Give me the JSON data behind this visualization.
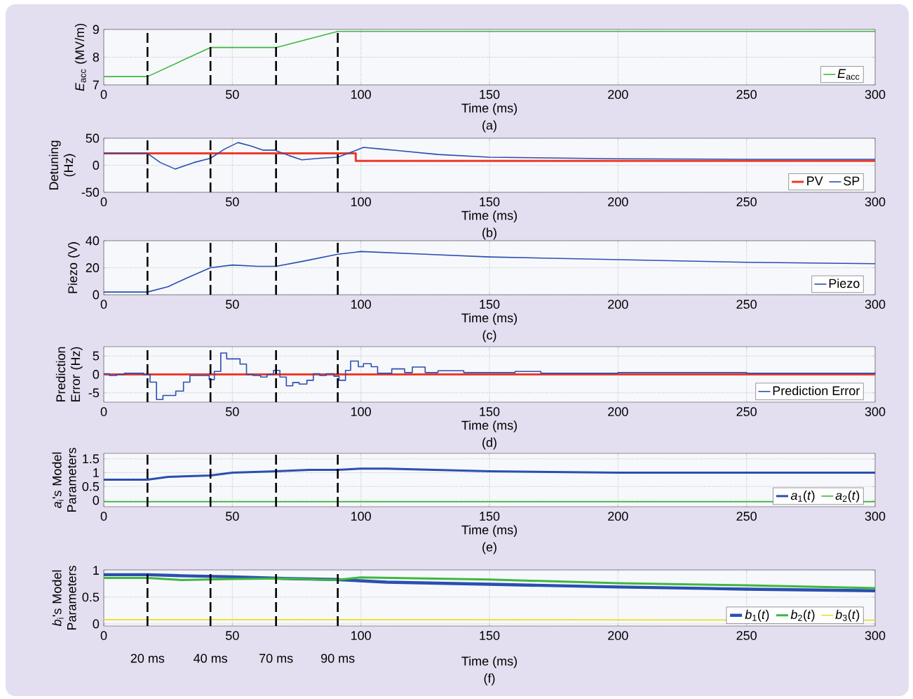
{
  "chart_data": [
    {
      "type": "line",
      "subtitle": "(a)",
      "xlabel": "Time (ms)",
      "ylabel": "*E*$_{acc}$ (MV/m)",
      "xlim": [
        0,
        300
      ],
      "xticks": [
        0,
        50,
        100,
        150,
        200,
        250,
        300
      ],
      "ylim": [
        7,
        9
      ],
      "yticks": [
        7,
        8,
        9
      ],
      "grid": true,
      "legend": "bottom right",
      "series": [
        {
          "name": "*E*$_{acc}$",
          "color": "#3db83d",
          "x": [
            0,
            17,
            41.5,
            67,
            91,
            300
          ],
          "values": [
            7.3,
            7.3,
            8.35,
            8.35,
            8.93,
            8.93
          ]
        }
      ],
      "ref_lines": [
        {
          "axis": "x",
          "value": 17
        },
        {
          "axis": "x",
          "value": 41.5
        },
        {
          "axis": "x",
          "value": 67
        },
        {
          "axis": "x",
          "value": 91
        }
      ]
    },
    {
      "type": "line",
      "subtitle": "(b)",
      "xlabel": "Time (ms)",
      "ylabel": "Detuning (Hz)",
      "xlim": [
        0,
        300
      ],
      "xticks": [
        0,
        50,
        100,
        150,
        200,
        250,
        300
      ],
      "ylim": [
        -50,
        50
      ],
      "yticks": [
        -50,
        0,
        50
      ],
      "grid": true,
      "legend": "bottom right",
      "series": [
        {
          "name": "PV",
          "color": "#ee3a2c",
          "x": [
            0,
            98,
            98,
            300
          ],
          "values": [
            22,
            22,
            8,
            8
          ]
        },
        {
          "name": "SP",
          "color": "#2a4fb0",
          "x": [
            0,
            17,
            22,
            27.8,
            35,
            41.5,
            47,
            52.2,
            57,
            62,
            66.5,
            72,
            77,
            84,
            91,
            95,
            101,
            108,
            115,
            130,
            150,
            200,
            250,
            300
          ],
          "values": [
            22,
            22,
            5,
            -7,
            5,
            13,
            30,
            42,
            36,
            28,
            28,
            18,
            10,
            13,
            15,
            22,
            33,
            30,
            27,
            20,
            15,
            12,
            11,
            11
          ]
        }
      ],
      "ref_lines": [
        {
          "axis": "x",
          "value": 17
        },
        {
          "axis": "x",
          "value": 41.5
        },
        {
          "axis": "x",
          "value": 67
        },
        {
          "axis": "x",
          "value": 91
        }
      ]
    },
    {
      "type": "line",
      "subtitle": "(c)",
      "xlabel": "Time (ms)",
      "ylabel": "Piezo (V)",
      "xlim": [
        0,
        300
      ],
      "xticks": [
        0,
        50,
        100,
        150,
        200,
        250,
        300
      ],
      "ylim": [
        0,
        40
      ],
      "yticks": [
        0,
        20,
        40
      ],
      "grid": true,
      "legend": "bottom right",
      "series": [
        {
          "name": "Piezo",
          "color": "#2a4fb0",
          "x": [
            0,
            17,
            25,
            33,
            41.5,
            50,
            60,
            67,
            78,
            91,
            100,
            125,
            150,
            200,
            250,
            300
          ],
          "values": [
            2,
            2,
            6,
            13,
            20,
            22,
            21,
            21,
            25,
            30,
            32,
            30,
            28,
            26,
            24,
            23
          ]
        }
      ],
      "ref_lines": [
        {
          "axis": "x",
          "value": 17
        },
        {
          "axis": "x",
          "value": 41.5
        },
        {
          "axis": "x",
          "value": 67
        },
        {
          "axis": "x",
          "value": 91
        }
      ]
    },
    {
      "type": "line",
      "subtitle": "(d)",
      "xlabel": "Time (ms)",
      "ylabel": "Prediction Error (Hz)",
      "xlim": [
        0,
        300
      ],
      "xticks": [
        0,
        50,
        100,
        150,
        200,
        250,
        300
      ],
      "ylim": [
        -7.5,
        7.5
      ],
      "yticks": [
        -5,
        0,
        5
      ],
      "grid": true,
      "legend": "bottom right",
      "series": [
        {
          "color": "#ee3a2c",
          "x": [
            0,
            300
          ],
          "values": [
            0,
            0
          ]
        },
        {
          "name": "Prediction Error",
          "type": "step",
          "color": "#2a4fb0",
          "x": [
            0,
            2.2,
            5,
            8,
            15.5,
            18,
            20.5,
            23,
            28,
            31,
            33.5,
            41,
            43,
            45.5,
            47.8,
            53,
            55.5,
            58,
            61,
            63.5,
            66,
            68.5,
            71,
            73.5,
            76,
            79,
            81.5,
            84,
            86.5,
            89.5,
            91.5,
            94,
            96,
            99,
            101,
            104,
            106.5,
            112,
            117,
            120,
            125,
            130,
            140,
            160,
            170,
            200,
            250,
            300
          ],
          "values": [
            0.2,
            -0.3,
            0,
            0.3,
            -0.1,
            -2.1,
            -6.8,
            -5.7,
            -4.5,
            -2.1,
            -0.3,
            -1.4,
            0.8,
            5.8,
            4.2,
            2.8,
            0,
            -0.3,
            -0.7,
            0,
            1.1,
            -0.7,
            -3.1,
            -2.2,
            -2.6,
            -1.6,
            0.2,
            -0.3,
            0.2,
            -0.5,
            -1.6,
            1.1,
            3.6,
            2.1,
            2.9,
            2.1,
            0.3,
            1.5,
            0.5,
            2,
            0.5,
            1,
            0.5,
            0.8,
            0.3,
            0.5,
            0.3,
            0.5
          ]
        }
      ],
      "ref_lines": [
        {
          "axis": "x",
          "value": 17
        },
        {
          "axis": "x",
          "value": 41.5
        },
        {
          "axis": "x",
          "value": 67
        },
        {
          "axis": "x",
          "value": 91
        }
      ]
    },
    {
      "type": "line",
      "subtitle": "(e)",
      "xlabel": "Time (ms)",
      "ylabel": "*a*$_{i}$'s Model Parameters",
      "xlim": [
        0,
        300
      ],
      "xticks": [
        0,
        50,
        100,
        150,
        200,
        250,
        300
      ],
      "ylim": [
        -0.23,
        1.7
      ],
      "yticks": [
        0,
        0.5,
        1,
        1.5
      ],
      "grid": true,
      "legend": "bottom right",
      "series": [
        {
          "name": "*a*$_{1}$(*t*)",
          "color": "#2a4fb0",
          "x": [
            0,
            17,
            25,
            41.5,
            50,
            67,
            80,
            91,
            100,
            110,
            150,
            200,
            300
          ],
          "values": [
            0.75,
            0.75,
            0.85,
            0.9,
            1.0,
            1.05,
            1.1,
            1.1,
            1.15,
            1.15,
            1.05,
            1.0,
            1.0
          ]
        },
        {
          "name": "*a*$_{2}$(*t*)",
          "color": "#3db83d",
          "x": [
            0,
            300
          ],
          "values": [
            -0.05,
            -0.05
          ]
        }
      ],
      "ref_lines": [
        {
          "axis": "x",
          "value": 17
        },
        {
          "axis": "x",
          "value": 41.5
        },
        {
          "axis": "x",
          "value": 67
        },
        {
          "axis": "x",
          "value": 91
        }
      ]
    },
    {
      "type": "line",
      "subtitle": "(f)",
      "xlabel": "Time (ms)",
      "ylabel": "*b*$_{i}$'s Model Parameters",
      "xlim": [
        0,
        300
      ],
      "xticks": [
        0,
        50,
        100,
        150,
        200,
        250,
        300
      ],
      "ylim": [
        -0.04,
        1.01
      ],
      "yticks": [
        0,
        0.5,
        1
      ],
      "grid": true,
      "legend": "bottom right",
      "series": [
        {
          "name": "*b*$_{1}$(*t*)",
          "color": "#2a4fb0",
          "x": [
            0,
            17,
            30,
            50,
            70,
            90,
            110,
            150,
            200,
            250,
            300
          ],
          "values": [
            0.92,
            0.92,
            0.9,
            0.88,
            0.85,
            0.83,
            0.78,
            0.74,
            0.69,
            0.65,
            0.62
          ]
        },
        {
          "name": "*b*$_{2}$(*t*)",
          "color": "#3db83d",
          "x": [
            0,
            17,
            30,
            50,
            70,
            90,
            100,
            150,
            200,
            250,
            300
          ],
          "values": [
            0.86,
            0.86,
            0.82,
            0.84,
            0.85,
            0.82,
            0.87,
            0.83,
            0.76,
            0.72,
            0.67
          ]
        },
        {
          "name": "*b*$_{3}$(*t*)",
          "color": "#e8e020",
          "x": [
            0,
            100,
            300
          ],
          "values": [
            0.08,
            0.08,
            0.07
          ]
        }
      ],
      "ref_lines": [
        {
          "axis": "x",
          "value": 17,
          "label": "20 ms"
        },
        {
          "axis": "x",
          "value": 41.5,
          "label": "40 ms"
        },
        {
          "axis": "x",
          "value": 67,
          "label": "70 ms"
        },
        {
          "axis": "x",
          "value": 91,
          "label": "90 ms"
        }
      ]
    }
  ]
}
